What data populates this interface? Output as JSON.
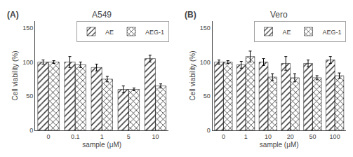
{
  "chart_data": [
    {
      "type": "bar",
      "title": "A549",
      "xlabel": "sample (μM)",
      "ylabel": "Cell viability (%)",
      "categories": [
        "0",
        "0.1",
        "1",
        "5",
        "10"
      ],
      "series": [
        {
          "name": "AE",
          "color": "#b0b0b0",
          "values": [
            100,
            100,
            92,
            60,
            105
          ],
          "errors": [
            3,
            8,
            5,
            5,
            5
          ]
        },
        {
          "name": "AEG-1",
          "color": "#e8e8e8",
          "values": [
            100,
            96,
            75,
            60,
            65
          ],
          "errors": [
            2,
            4,
            4,
            2,
            3
          ]
        }
      ],
      "ylim": [
        0,
        160
      ],
      "yticks": [
        0,
        50,
        100,
        150
      ],
      "grid": false,
      "legend": "upper right",
      "annotations": [
        "(A)"
      ]
    },
    {
      "type": "bar",
      "title": "Vero",
      "xlabel": "sample (μM)",
      "ylabel": "Cell viability (%)",
      "categories": [
        "0",
        "1",
        "10",
        "20",
        "50",
        "100"
      ],
      "series": [
        {
          "name": "AE",
          "color": "#b0b0b0",
          "values": [
            100,
            96,
            100,
            98,
            98,
            103
          ],
          "errors": [
            3,
            5,
            5,
            10,
            5,
            5
          ]
        },
        {
          "name": "AEG-1",
          "color": "#e8e8e8",
          "values": [
            100,
            108,
            78,
            77,
            77,
            80
          ],
          "errors": [
            2,
            8,
            5,
            6,
            3,
            4
          ]
        }
      ],
      "ylim": [
        0,
        160
      ],
      "yticks": [
        0,
        50,
        100,
        150
      ],
      "grid": false,
      "legend": "upper right",
      "annotations": [
        "(B)"
      ]
    }
  ]
}
